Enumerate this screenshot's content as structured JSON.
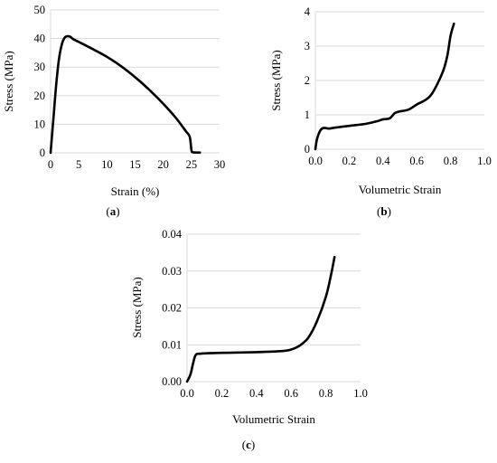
{
  "chart_data": [
    {
      "type": "line",
      "panel_label_prefix": "(",
      "panel_label": "a",
      "panel_label_suffix": ")",
      "xlabel": "Strain (%)",
      "ylabel": "Stress (MPa)",
      "xlim": [
        0,
        30
      ],
      "ylim": [
        0,
        50
      ],
      "xticks": [
        0,
        5,
        10,
        15,
        20,
        25,
        30
      ],
      "yticks": [
        0,
        10,
        20,
        30,
        40,
        50
      ],
      "xtick_labels": [
        "0",
        "5",
        "10",
        "15",
        "20",
        "25",
        "30"
      ],
      "ytick_labels": [
        "0",
        "10",
        "20",
        "30",
        "40",
        "50"
      ],
      "grid": "horizontal",
      "series": [
        {
          "x": [
            0,
            0.5,
            1,
            1.5,
            2,
            2.5,
            3,
            3.5,
            4,
            5,
            7,
            10,
            13,
            16,
            19,
            22,
            24,
            24.7,
            25,
            25.2,
            26,
            26.5
          ],
          "y": [
            0,
            12,
            24,
            33,
            38,
            40.3,
            40.8,
            40.6,
            39.8,
            38.8,
            36.8,
            33.6,
            29.6,
            24.8,
            19.2,
            12.8,
            7.6,
            5.6,
            1.0,
            0.2,
            0.1,
            0.1
          ]
        }
      ]
    },
    {
      "type": "line",
      "panel_label_prefix": "(",
      "panel_label": "b",
      "panel_label_suffix": ")",
      "xlabel": "Volumetric Strain",
      "ylabel": "Stress (MPa)",
      "xlim": [
        0,
        1
      ],
      "ylim": [
        0,
        4
      ],
      "xticks": [
        0,
        0.2,
        0.4,
        0.6,
        0.8,
        1.0
      ],
      "yticks": [
        0,
        1,
        2,
        3,
        4
      ],
      "xtick_labels": [
        "0.0",
        "0.2",
        "0.4",
        "0.6",
        "0.8",
        "1.0"
      ],
      "ytick_labels": [
        "0",
        "1",
        "2",
        "3",
        "4"
      ],
      "grid": "horizontal",
      "series": [
        {
          "x": [
            0,
            0.01,
            0.03,
            0.05,
            0.08,
            0.12,
            0.2,
            0.3,
            0.37,
            0.4,
            0.44,
            0.47,
            0.5,
            0.55,
            0.6,
            0.68,
            0.75,
            0.78,
            0.8,
            0.82
          ],
          "y": [
            0,
            0.3,
            0.55,
            0.62,
            0.6,
            0.63,
            0.68,
            0.74,
            0.82,
            0.87,
            0.9,
            1.05,
            1.1,
            1.15,
            1.3,
            1.55,
            2.2,
            2.7,
            3.3,
            3.65
          ]
        }
      ]
    },
    {
      "type": "line",
      "panel_label_prefix": "(",
      "panel_label": "c",
      "panel_label_suffix": ")",
      "xlabel": "Volumetric Strain",
      "ylabel": "Stress (MPa)",
      "xlim": [
        0,
        1
      ],
      "ylim": [
        0,
        0.04
      ],
      "xticks": [
        0,
        0.2,
        0.4,
        0.6,
        0.8,
        1.0
      ],
      "yticks": [
        0,
        0.01,
        0.02,
        0.03,
        0.04
      ],
      "xtick_labels": [
        "0.0",
        "0.2",
        "0.4",
        "0.6",
        "0.8",
        "1.0"
      ],
      "ytick_labels": [
        "0.00",
        "0.01",
        "0.02",
        "0.03",
        "0.04"
      ],
      "grid": "horizontal",
      "series": [
        {
          "x": [
            0,
            0.02,
            0.035,
            0.05,
            0.08,
            0.2,
            0.4,
            0.55,
            0.6,
            0.65,
            0.7,
            0.75,
            0.8,
            0.83,
            0.85
          ],
          "y": [
            0,
            0.002,
            0.005,
            0.0072,
            0.0076,
            0.0078,
            0.008,
            0.0083,
            0.0087,
            0.0098,
            0.012,
            0.0165,
            0.023,
            0.029,
            0.0338
          ]
        }
      ]
    }
  ]
}
